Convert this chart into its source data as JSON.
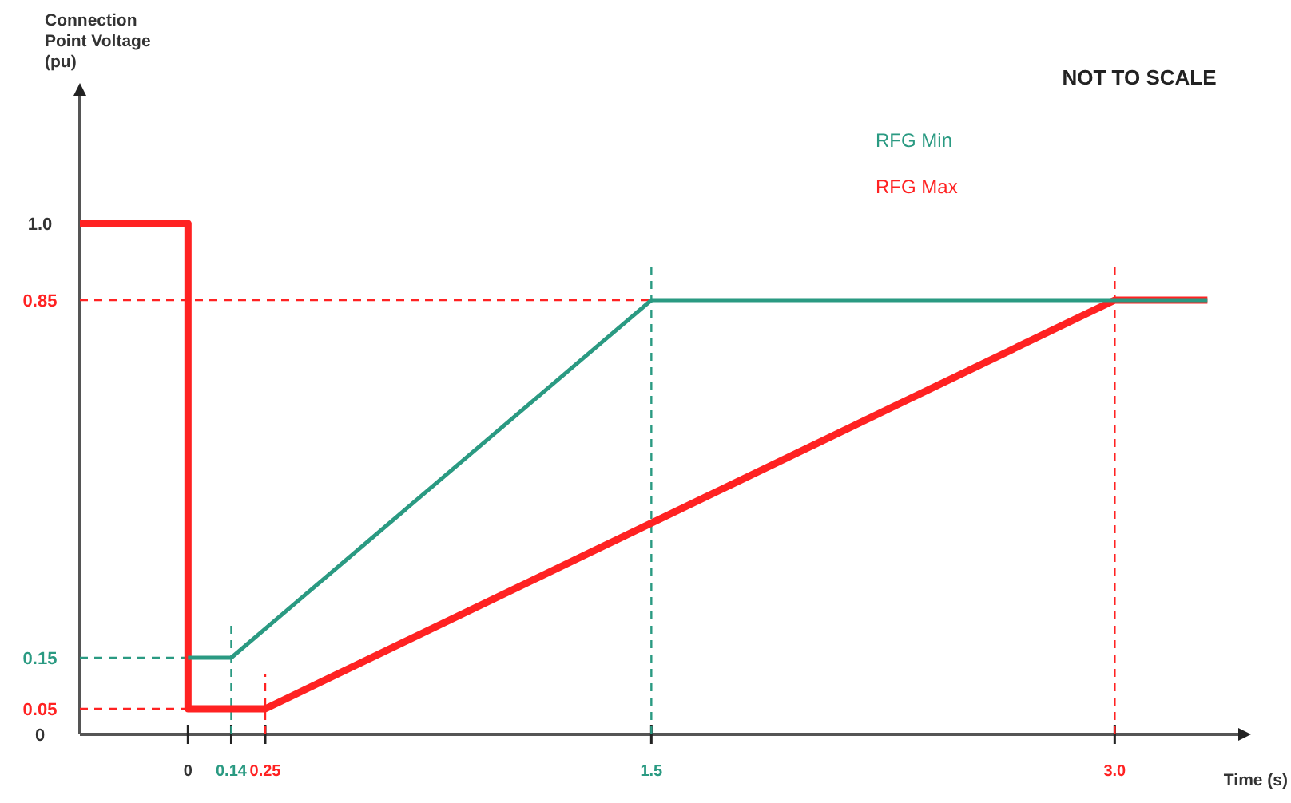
{
  "chart_data": {
    "type": "line",
    "ylabel": "Connection Point Voltage (pu)",
    "xlabel": "Time (s)",
    "annotations": [
      "NOT TO SCALE"
    ],
    "xlim": [
      -0.35,
      3.4
    ],
    "ylim": [
      0,
      1.25
    ],
    "xticks": [
      0,
      0.14,
      0.25,
      1.5,
      {
        "value": 3.0,
        "label": "3.0"
      }
    ],
    "yticks": [
      0,
      0.05,
      0.15,
      0.85,
      {
        "value": 1.0,
        "label": "1.0"
      }
    ],
    "series": [
      {
        "name": "RFG Min",
        "color": "#2a9a82",
        "x": [
          0,
          0.14,
          1.5,
          3.3
        ],
        "values": [
          0.15,
          0.15,
          0.85,
          0.85
        ]
      },
      {
        "name": "RFG Max",
        "color": "#ff2222",
        "x": [
          -0.35,
          0,
          0,
          0.25,
          3.0,
          3.3
        ],
        "values": [
          1.0,
          1.0,
          0.05,
          0.05,
          0.85,
          0.85
        ]
      }
    ],
    "ref_lines": [
      {
        "axis": "y",
        "value": 0.85,
        "color": "#ff2222",
        "line_style": "dashed"
      },
      {
        "axis": "y",
        "value": 0.15,
        "color": "#2a9a82",
        "line_style": "dashed"
      },
      {
        "axis": "y",
        "value": 0.05,
        "color": "#ff2222",
        "line_style": "dashed"
      },
      {
        "axis": "x",
        "value": 0.14,
        "color": "#2a9a82",
        "line_style": "dashed"
      },
      {
        "axis": "x",
        "value": 0.25,
        "color": "#ff2222",
        "line_style": "dashed"
      },
      {
        "axis": "x",
        "value": 1.5,
        "color": "#2a9a82",
        "line_style": "dashed"
      },
      {
        "axis": "x",
        "value": 3.0,
        "color": "#ff2222",
        "line_style": "dashed"
      }
    ],
    "legend": "top right",
    "line_style": "solid",
    "marker": "none",
    "grid": false
  }
}
